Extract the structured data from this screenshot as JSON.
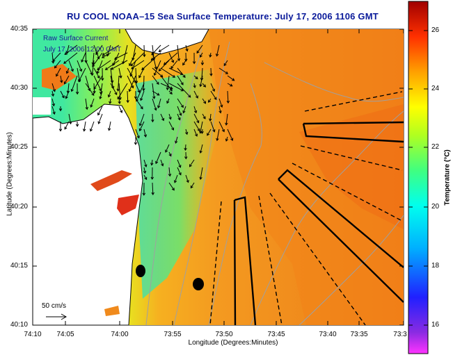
{
  "title": "RU COOL  NOAA–15  Sea Surface Temperature:  July 17, 2006 1106 GMT",
  "legend": {
    "line1": "Raw Surface Current",
    "line2": "July 17, 2006 12:00 GMT"
  },
  "scale_label": "50 cm/s",
  "axes": {
    "xlabel": "Longitude (Degrees:Minutes)",
    "ylabel": "Latitude (Degrees:Minutes)",
    "xticks": [
      "74:10",
      "74:05",
      "74:00",
      "73:55",
      "73:50",
      "73:45",
      "73:40",
      "73:35",
      "73:3"
    ],
    "yticks": [
      "40:35",
      "40:30",
      "40:25",
      "40:20",
      "40:15",
      "40:10"
    ]
  },
  "colorbar": {
    "label": "Temperature (°C)",
    "ticks": [
      "26",
      "24",
      "22",
      "20",
      "18",
      "16"
    ],
    "range": [
      15,
      27
    ]
  },
  "colors": {
    "title": "#0a1a9a",
    "land": "#ffffff",
    "coast": "#000000",
    "bathymetry": "#a0a0a0",
    "arrow": "#000000"
  }
}
